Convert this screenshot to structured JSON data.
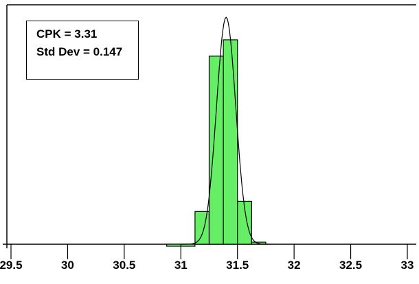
{
  "chart_data": {
    "type": "bar",
    "title": "",
    "xlabel": "",
    "ylabel": "",
    "xlim": [
      29.5,
      33
    ],
    "x_ticks": [
      "29.5",
      "30",
      "30.5",
      "31",
      "31.5",
      "32",
      "32.5",
      "33"
    ],
    "bins": [
      {
        "start": 30.875,
        "end": 31.125,
        "value": -0.01
      },
      {
        "start": 31.125,
        "end": 31.25,
        "value": 0.16
      },
      {
        "start": 31.25,
        "end": 31.375,
        "value": 0.92
      },
      {
        "start": 31.375,
        "end": 31.5,
        "value": 1.0
      },
      {
        "start": 31.5,
        "end": 31.625,
        "value": 0.21
      },
      {
        "start": 31.625,
        "end": 31.75,
        "value": 0.01
      }
    ],
    "fit_curve": {
      "type": "normal",
      "mean": 31.4,
      "peak": 1.11
    },
    "colors": {
      "bar_fill": "#66ee66",
      "bar_stroke": "#000000",
      "curve": "#000000"
    },
    "annotations": {
      "cpk": "CPK = 3.31",
      "std_dev": "Std Dev = 0.147"
    }
  }
}
